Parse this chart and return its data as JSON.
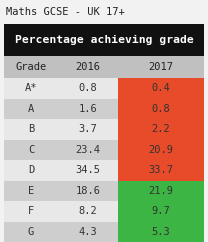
{
  "title": "Maths GCSE - UK 17+",
  "header": "Percentage achieving grade",
  "col_headers": [
    "Grade",
    "2016",
    "2017"
  ],
  "grades": [
    "A*",
    "A",
    "B",
    "C",
    "D",
    "E",
    "F",
    "G"
  ],
  "values_2016": [
    "0.8",
    "1.6",
    "3.7",
    "23.4",
    "34.5",
    "18.6",
    "8.2",
    "4.3"
  ],
  "values_2017": [
    "0.4",
    "0.8",
    "2.2",
    "20.9",
    "33.7",
    "21.9",
    "9.7",
    "5.3"
  ],
  "cell_colors_2017": [
    "#e84b2a",
    "#e84b2a",
    "#e84b2a",
    "#e84b2a",
    "#e84b2a",
    "#3db544",
    "#3db544",
    "#3db544"
  ],
  "header_bg": "#111111",
  "header_text": "#ffffff",
  "col_header_bg": "#c0c0c0",
  "col_header_text": "#222222",
  "row_bg_light": "#e8e8e8",
  "row_bg_dark": "#cecece",
  "table_text": "#333333",
  "title_color": "#222222",
  "fig_bg": "#f2f2f2"
}
